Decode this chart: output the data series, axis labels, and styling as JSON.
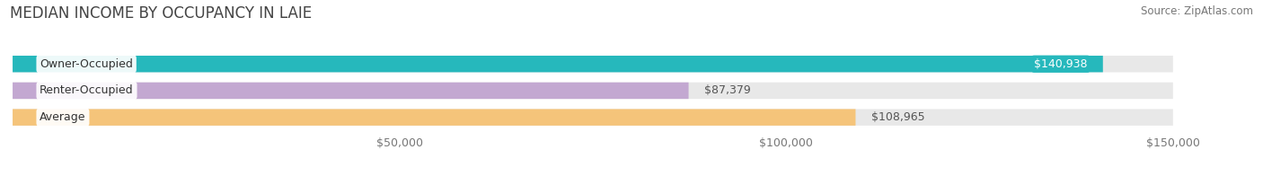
{
  "title": "MEDIAN INCOME BY OCCUPANCY IN LAIE",
  "source": "Source: ZipAtlas.com",
  "categories": [
    "Owner-Occupied",
    "Renter-Occupied",
    "Average"
  ],
  "values": [
    140938,
    87379,
    108965
  ],
  "bar_colors": [
    "#26b8bc",
    "#c3a8d1",
    "#f5c47a"
  ],
  "value_labels": [
    "$140,938",
    "$87,379",
    "$108,965"
  ],
  "value_label_white": [
    true,
    false,
    false
  ],
  "xlim_max": 160000,
  "data_max": 150000,
  "xticks": [
    50000,
    100000,
    150000
  ],
  "xtick_labels": [
    "$50,000",
    "$100,000",
    "$150,000"
  ],
  "background_color": "#ffffff",
  "bar_bg_color": "#e8e8e8",
  "title_fontsize": 12,
  "source_fontsize": 8.5,
  "label_fontsize": 9,
  "value_fontsize": 9
}
